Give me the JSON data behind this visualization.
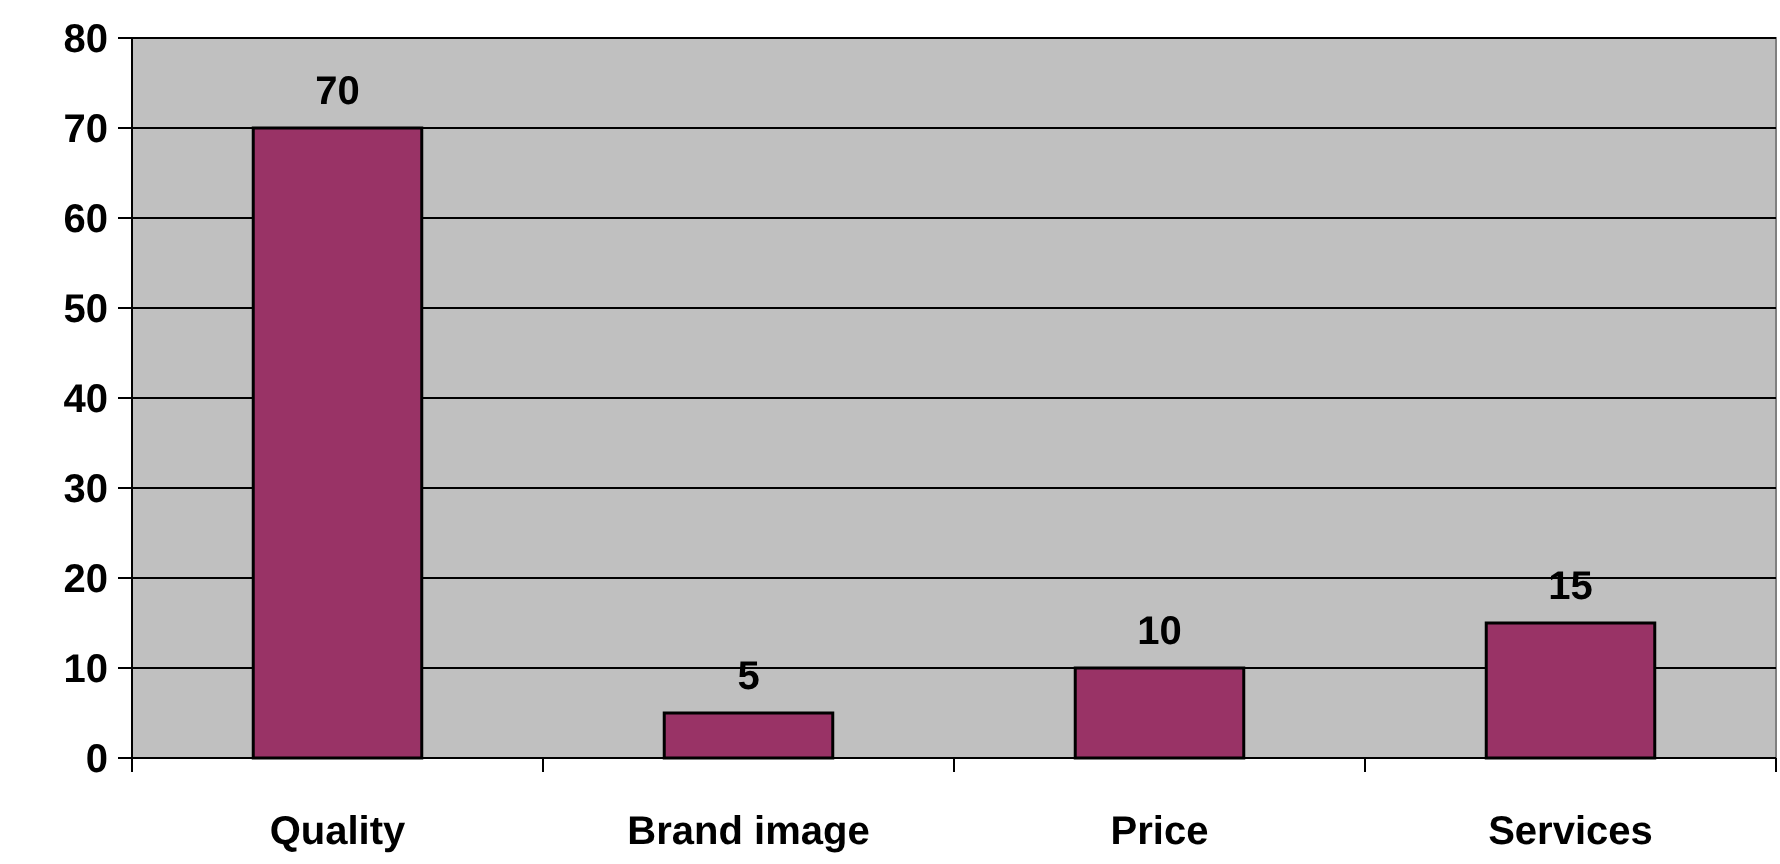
{
  "chart_data": {
    "type": "bar",
    "categories": [
      "Quality",
      "Brand image",
      "Price",
      "Services"
    ],
    "values": [
      70,
      5,
      10,
      15
    ],
    "color": "#993366",
    "ylim": [
      0,
      80
    ],
    "yticks": [
      0,
      10,
      20,
      30,
      40,
      50,
      60,
      70,
      80
    ],
    "grid": "y",
    "data_labels": true
  }
}
